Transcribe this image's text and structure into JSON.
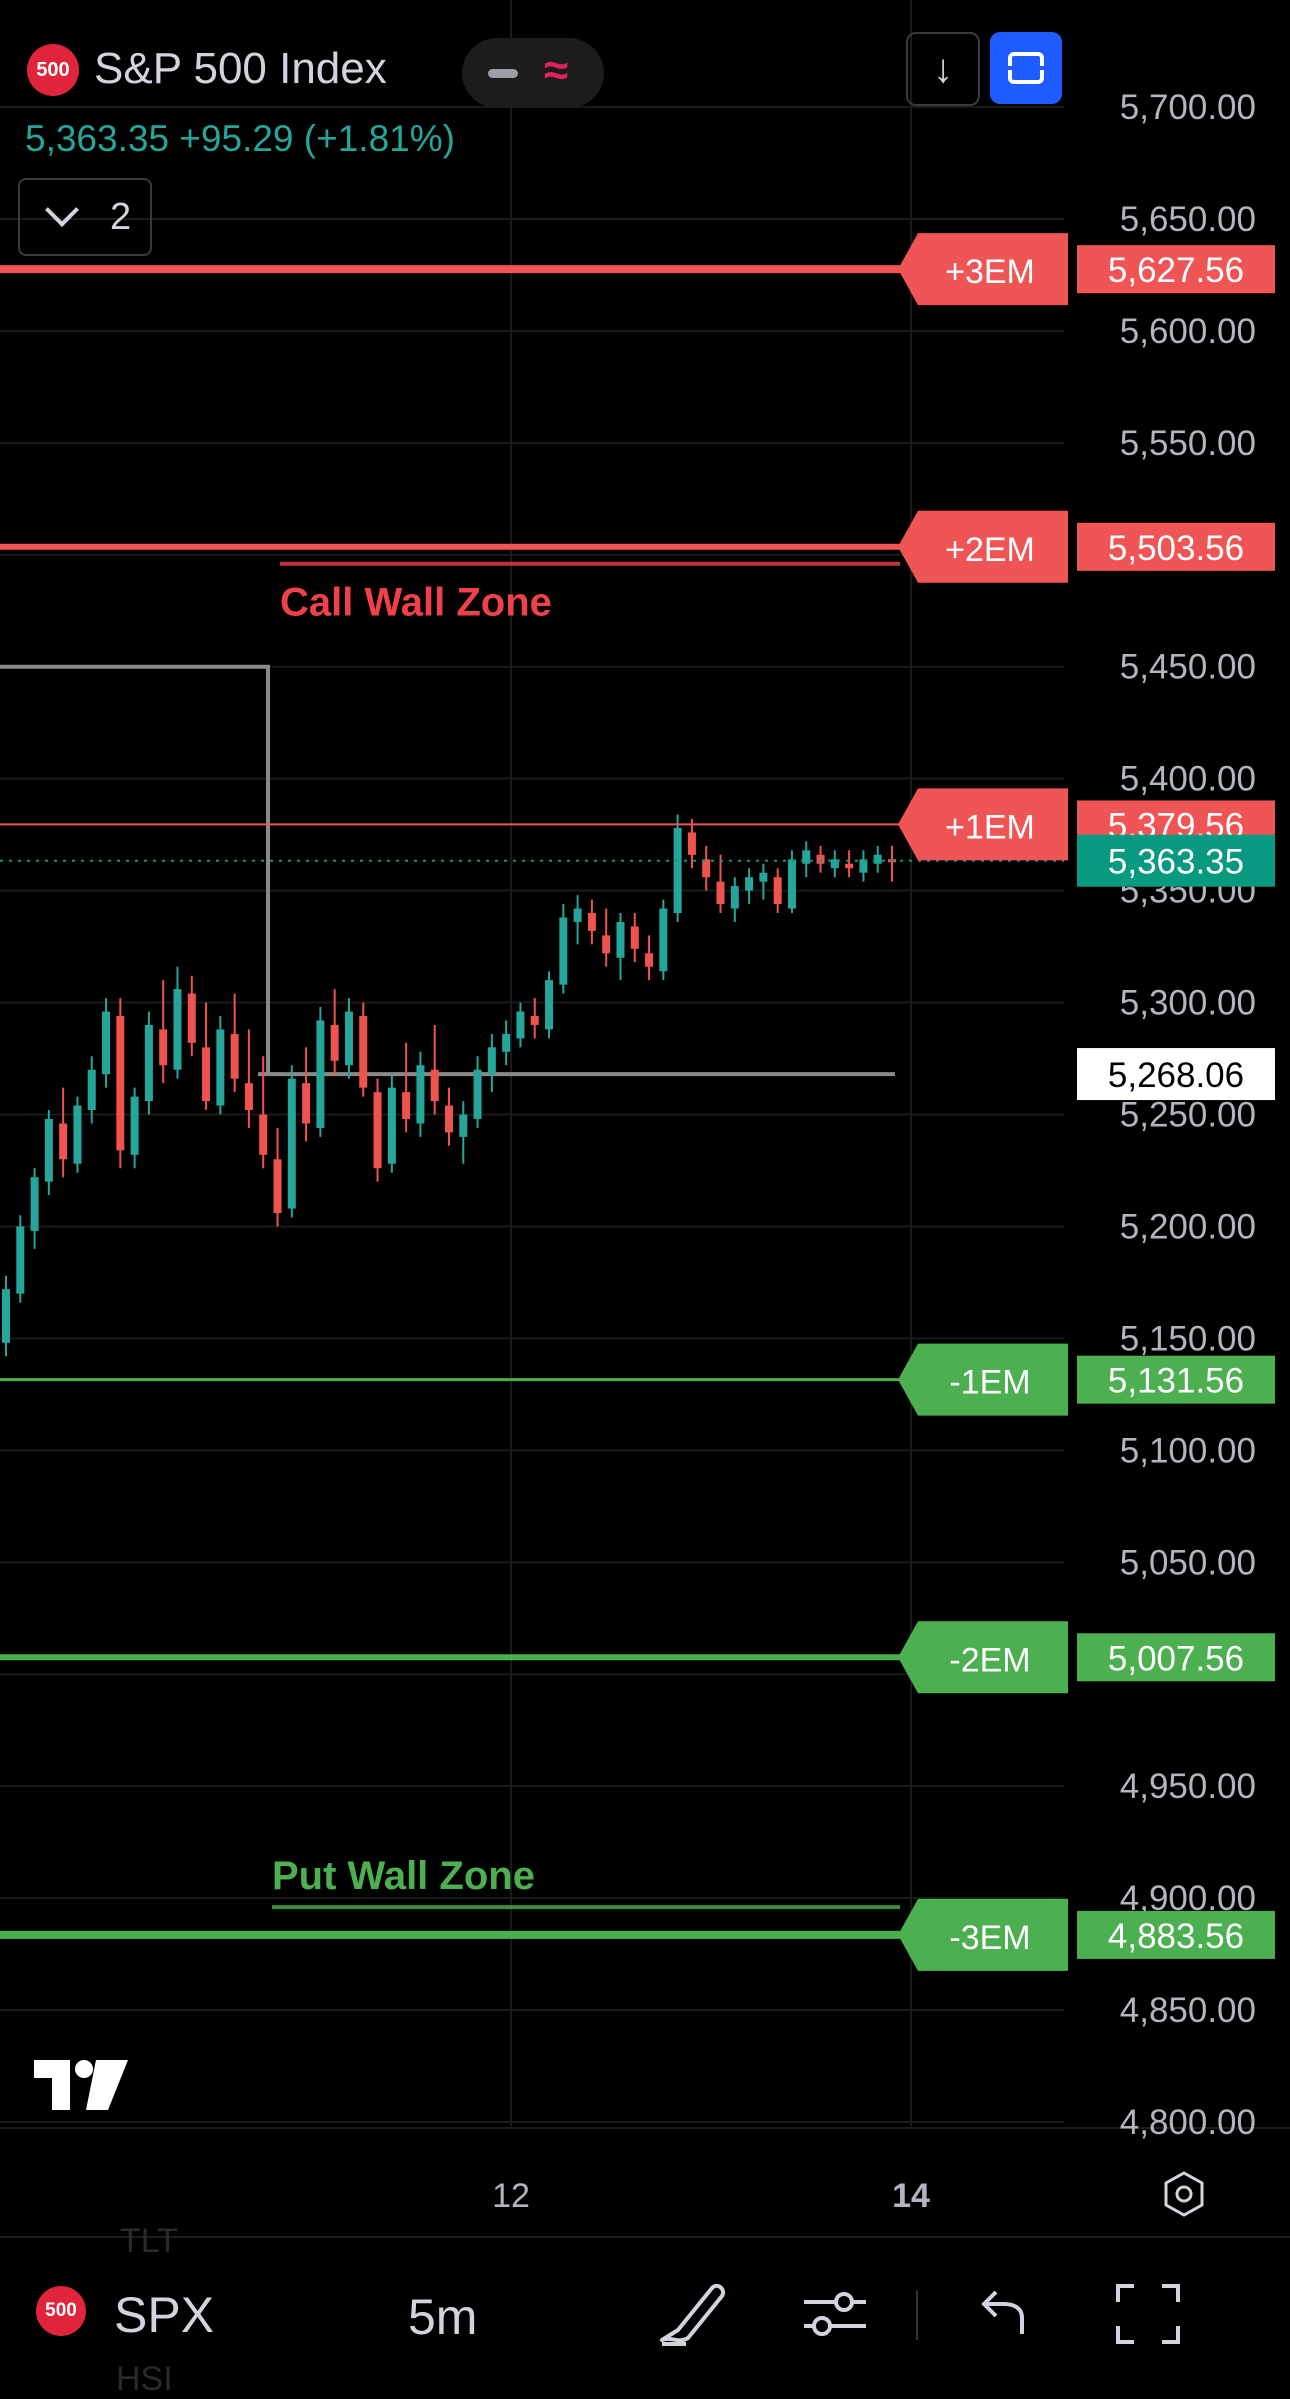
{
  "header": {
    "badge": "500",
    "title": "S&P 500 Index",
    "price_line": "5,363.35 +95.29 (+1.81%)",
    "collapse_count": "2",
    "colors": {
      "up": "#26a69a",
      "down": "#ef5350",
      "badge": "#e0243c",
      "accent_blue": "#1f5cff"
    }
  },
  "bottom_bar": {
    "badge": "500",
    "symbol": "SPX",
    "interval": "5m",
    "ghost_top": "TLT",
    "ghost_bottom": "HSI"
  },
  "chart_data": {
    "type": "candlestick",
    "y_ticks": [
      "5,700.00",
      "5,650.00",
      "5,600.00",
      "5,550.00",
      "5,450.00",
      "5,400.00",
      "5,350.00",
      "5,300.00",
      "5,250.00",
      "5,200.00",
      "5,150.00",
      "5,100.00",
      "5,050.00",
      "4,950.00",
      "4,900.00",
      "4,850.00",
      "4,800.00"
    ],
    "y_tick_values": [
      5700,
      5650,
      5600,
      5550,
      5450,
      5400,
      5350,
      5300,
      5250,
      5200,
      5150,
      5100,
      5050,
      4950,
      4900,
      4850,
      4800
    ],
    "ylim": [
      4800,
      5700
    ],
    "x_ticks": [
      {
        "label": "12",
        "bold": false
      },
      {
        "label": "14",
        "bold": true
      }
    ],
    "levels": [
      {
        "tag": "+3EM",
        "value": 5627.56,
        "price_label": "5,627.56",
        "color": "#f05555",
        "width": 8
      },
      {
        "tag": "+2EM",
        "value": 5503.56,
        "price_label": "5,503.56",
        "color": "#f05555",
        "width": 6
      },
      {
        "tag": "+1EM",
        "value": 5379.56,
        "price_label": "5,379.56",
        "color": "#f05555",
        "width": 2
      },
      {
        "tag": "-1EM",
        "value": 5131.56,
        "price_label": "5,131.56",
        "color": "#4caf50",
        "width": 3
      },
      {
        "tag": "-2EM",
        "value": 5007.56,
        "price_label": "5,007.56",
        "color": "#4caf50",
        "width": 6
      },
      {
        "tag": "-3EM",
        "value": 4883.56,
        "price_label": "4,883.56",
        "color": "#4caf50",
        "width": 8
      }
    ],
    "current_price": {
      "value": 5363.35,
      "label": "5,363.35",
      "color": "#089981"
    },
    "gray_level": {
      "value": 5268.06,
      "label": "5,268.06"
    },
    "box_top_value": 5450,
    "zones": [
      {
        "label": "Call Wall Zone",
        "value": 5496,
        "color": "#f0404a"
      },
      {
        "label": "Put Wall Zone",
        "value": 4896,
        "color": "#4caf50"
      }
    ],
    "candles_ohlc": [
      [
        5148,
        5178,
        5142,
        5172
      ],
      [
        5170,
        5205,
        5166,
        5200
      ],
      [
        5198,
        5226,
        5190,
        5222
      ],
      [
        5220,
        5252,
        5214,
        5248
      ],
      [
        5246,
        5262,
        5222,
        5230
      ],
      [
        5228,
        5258,
        5224,
        5254
      ],
      [
        5252,
        5276,
        5246,
        5270
      ],
      [
        5268,
        5302,
        5262,
        5296
      ],
      [
        5294,
        5302,
        5226,
        5234
      ],
      [
        5232,
        5262,
        5226,
        5258
      ],
      [
        5256,
        5296,
        5250,
        5290
      ],
      [
        5288,
        5310,
        5264,
        5272
      ],
      [
        5270,
        5316,
        5266,
        5306
      ],
      [
        5304,
        5312,
        5276,
        5282
      ],
      [
        5280,
        5300,
        5252,
        5256
      ],
      [
        5254,
        5294,
        5250,
        5288
      ],
      [
        5286,
        5304,
        5260,
        5266
      ],
      [
        5264,
        5288,
        5244,
        5252
      ],
      [
        5250,
        5276,
        5226,
        5232
      ],
      [
        5230,
        5244,
        5200,
        5206
      ],
      [
        5208,
        5272,
        5204,
        5266
      ],
      [
        5264,
        5280,
        5238,
        5246
      ],
      [
        5244,
        5298,
        5240,
        5292
      ],
      [
        5290,
        5306,
        5268,
        5274
      ],
      [
        5272,
        5302,
        5266,
        5296
      ],
      [
        5294,
        5300,
        5258,
        5262
      ],
      [
        5260,
        5266,
        5220,
        5226
      ],
      [
        5228,
        5268,
        5224,
        5262
      ],
      [
        5260,
        5282,
        5242,
        5248
      ],
      [
        5246,
        5278,
        5240,
        5272
      ],
      [
        5270,
        5290,
        5250,
        5256
      ],
      [
        5254,
        5262,
        5236,
        5242
      ],
      [
        5240,
        5256,
        5228,
        5250
      ],
      [
        5248,
        5276,
        5244,
        5270
      ],
      [
        5268,
        5286,
        5260,
        5280
      ],
      [
        5278,
        5292,
        5272,
        5286
      ],
      [
        5284,
        5300,
        5280,
        5296
      ],
      [
        5294,
        5302,
        5284,
        5290
      ],
      [
        5288,
        5314,
        5284,
        5310
      ],
      [
        5308,
        5344,
        5304,
        5338
      ],
      [
        5336,
        5348,
        5326,
        5342
      ],
      [
        5340,
        5346,
        5326,
        5332
      ],
      [
        5330,
        5342,
        5316,
        5322
      ],
      [
        5320,
        5340,
        5310,
        5336
      ],
      [
        5334,
        5340,
        5318,
        5324
      ],
      [
        5322,
        5330,
        5310,
        5316
      ],
      [
        5314,
        5346,
        5310,
        5342
      ],
      [
        5340,
        5384,
        5336,
        5378
      ],
      [
        5376,
        5382,
        5360,
        5366
      ],
      [
        5364,
        5370,
        5350,
        5356
      ],
      [
        5354,
        5366,
        5340,
        5344
      ],
      [
        5342,
        5356,
        5336,
        5352
      ],
      [
        5350,
        5360,
        5344,
        5356
      ],
      [
        5354,
        5362,
        5346,
        5358
      ],
      [
        5356,
        5360,
        5340,
        5344
      ],
      [
        5342,
        5368,
        5340,
        5364
      ],
      [
        5362,
        5372,
        5356,
        5368
      ],
      [
        5366,
        5370,
        5358,
        5362
      ],
      [
        5360,
        5368,
        5356,
        5364
      ],
      [
        5362,
        5368,
        5356,
        5360
      ],
      [
        5358,
        5368,
        5354,
        5364
      ],
      [
        5362,
        5370,
        5358,
        5366
      ],
      [
        5364,
        5370,
        5354,
        5363
      ]
    ]
  }
}
